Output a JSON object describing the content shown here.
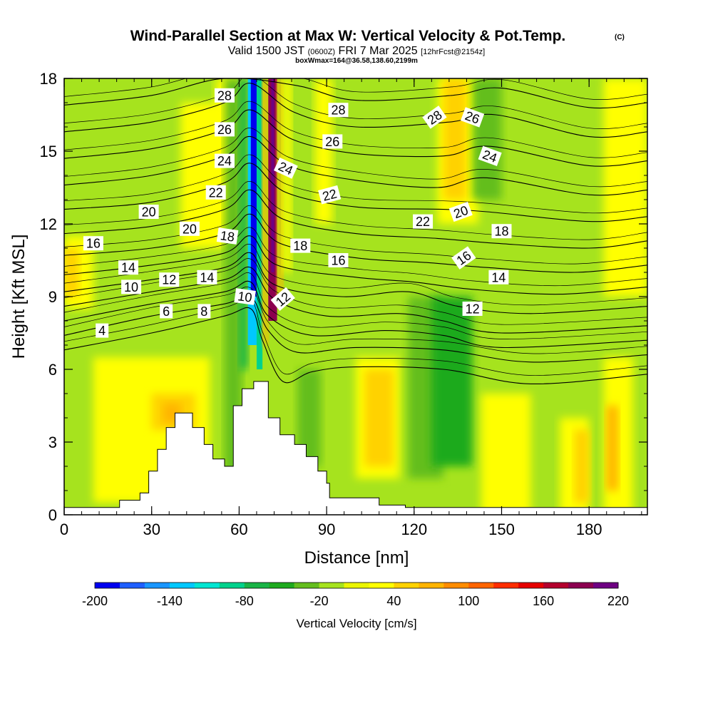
{
  "title": {
    "main": "Wind-Parallel Section at Max W: Vertical Velocity & Pot.Temp.",
    "copyright": "(C)",
    "valid_prefix": "Valid 1500 JST",
    "valid_utc": "(0600Z)",
    "valid_date": "FRI 7 Mar 2025",
    "forecast": "[12hrFcst@2154z]",
    "box": "boxWmax=164@36.58,138.60,2199m"
  },
  "chart_data": {
    "type": "heatmap",
    "xlabel": "Distance [nm]",
    "ylabel": "Height [Kft MSL]",
    "xlim": [
      0,
      200
    ],
    "ylim": [
      0,
      18
    ],
    "xticks": [
      0,
      30,
      60,
      90,
      120,
      150,
      180
    ],
    "yticks": [
      0,
      3,
      6,
      9,
      12,
      15,
      18
    ],
    "colorbar": {
      "label": "Vertical Velocity [cm/s]",
      "min": -200,
      "max": 220,
      "step": 20,
      "tick_labels": [
        -200,
        -140,
        -80,
        -20,
        40,
        100,
        160,
        220
      ],
      "colors": [
        "#0000f0",
        "#1f5fff",
        "#1996ff",
        "#00c8ff",
        "#00e6d2",
        "#00d28c",
        "#19b446",
        "#1eaa1e",
        "#64be1e",
        "#a6e31e",
        "#ebf500",
        "#ffff00",
        "#ffd200",
        "#ffb400",
        "#ff8c00",
        "#ff6400",
        "#ff2d00",
        "#e60000",
        "#b4002d",
        "#8c0050",
        "#6e0082"
      ]
    },
    "velocity_cells": [
      {
        "x0": 0,
        "x1": 200,
        "y0": 0,
        "y1": 18,
        "w": -10
      },
      {
        "x0": 0,
        "x1": 10,
        "y0": 8.5,
        "y1": 11.5,
        "w": 20
      },
      {
        "x0": 0,
        "x1": 5,
        "y0": 9,
        "y1": 11,
        "w": 40
      },
      {
        "x0": 10,
        "x1": 50,
        "y0": 0.5,
        "y1": 6.5,
        "w": 20
      },
      {
        "x0": 30,
        "x1": 45,
        "y0": 3.5,
        "y1": 5,
        "w": 40
      },
      {
        "x0": 34,
        "x1": 40,
        "y0": 3.8,
        "y1": 4.6,
        "w": 60
      },
      {
        "x0": 40,
        "x1": 56,
        "y0": 11,
        "y1": 17,
        "w": 20
      },
      {
        "x0": 52,
        "x1": 60,
        "y0": 12,
        "y1": 18,
        "w": 20
      },
      {
        "x0": 55,
        "x1": 61,
        "y0": 0,
        "y1": 18,
        "w": -40
      },
      {
        "x0": 60,
        "x1": 63,
        "y0": 6,
        "y1": 18,
        "w": -80
      },
      {
        "x0": 63,
        "x1": 66,
        "y0": 7,
        "y1": 18,
        "w": -140
      },
      {
        "x0": 64,
        "x1": 66,
        "y0": 9,
        "y1": 18,
        "w": -200
      },
      {
        "x0": 66,
        "x1": 68,
        "y0": 6,
        "y1": 18,
        "w": -100
      },
      {
        "x0": 68,
        "x1": 70,
        "y0": 7,
        "y1": 18,
        "w": 60
      },
      {
        "x0": 70,
        "x1": 73,
        "y0": 8,
        "y1": 18,
        "w": 180
      },
      {
        "x0": 71,
        "x1": 72,
        "y0": 10,
        "y1": 18,
        "w": 200
      },
      {
        "x0": 73,
        "x1": 75,
        "y0": 9,
        "y1": 18,
        "w": 60
      },
      {
        "x0": 75,
        "x1": 78,
        "y0": 10,
        "y1": 18,
        "w": 20
      },
      {
        "x0": 80,
        "x1": 88,
        "y0": 2,
        "y1": 6,
        "w": -40
      },
      {
        "x0": 86,
        "x1": 92,
        "y0": 12,
        "y1": 18,
        "w": 20
      },
      {
        "x0": 100,
        "x1": 115,
        "y0": 1.5,
        "y1": 6.5,
        "w": 20
      },
      {
        "x0": 103,
        "x1": 113,
        "y0": 2,
        "y1": 6,
        "w": 40
      },
      {
        "x0": 118,
        "x1": 130,
        "y0": 1.5,
        "y1": 9,
        "w": -30
      },
      {
        "x0": 126,
        "x1": 140,
        "y0": 2,
        "y1": 9,
        "w": -50
      },
      {
        "x0": 128,
        "x1": 142,
        "y0": 12,
        "y1": 18,
        "w": 20
      },
      {
        "x0": 130,
        "x1": 138,
        "y0": 13,
        "y1": 18,
        "w": 50
      },
      {
        "x0": 140,
        "x1": 150,
        "y0": 13,
        "y1": 18,
        "w": -40
      },
      {
        "x0": 143,
        "x1": 160,
        "y0": 0,
        "y1": 5,
        "w": 20
      },
      {
        "x0": 170,
        "x1": 180,
        "y0": 0,
        "y1": 4,
        "w": 20
      },
      {
        "x0": 175,
        "x1": 180,
        "y0": 0.5,
        "y1": 3.5,
        "w": 40
      },
      {
        "x0": 185,
        "x1": 195,
        "y0": 0,
        "y1": 6.5,
        "w": 20
      },
      {
        "x0": 186,
        "x1": 190,
        "y0": 1,
        "y1": 4.5,
        "w": 60
      },
      {
        "x0": 185,
        "x1": 200,
        "y0": 9,
        "y1": 18,
        "w": 20
      }
    ],
    "terrain": [
      [
        0,
        0.3
      ],
      [
        19,
        0.3
      ],
      [
        19,
        0.6
      ],
      [
        26,
        0.6
      ],
      [
        26,
        0.9
      ],
      [
        29,
        0.9
      ],
      [
        29,
        1.8
      ],
      [
        32,
        1.8
      ],
      [
        32,
        2.7
      ],
      [
        35,
        2.7
      ],
      [
        35,
        3.6
      ],
      [
        38,
        3.6
      ],
      [
        38,
        4.2
      ],
      [
        44,
        4.2
      ],
      [
        44,
        3.6
      ],
      [
        48,
        3.6
      ],
      [
        48,
        2.9
      ],
      [
        51,
        2.9
      ],
      [
        51,
        2.3
      ],
      [
        55,
        2.3
      ],
      [
        55,
        2.0
      ],
      [
        58,
        2.0
      ],
      [
        58,
        4.5
      ],
      [
        61,
        4.5
      ],
      [
        61,
        5.2
      ],
      [
        65,
        5.2
      ],
      [
        65,
        5.5
      ],
      [
        70,
        5.5
      ],
      [
        70,
        4.0
      ],
      [
        74,
        4.0
      ],
      [
        74,
        3.3
      ],
      [
        79,
        3.3
      ],
      [
        79,
        2.9
      ],
      [
        83,
        2.9
      ],
      [
        83,
        2.4
      ],
      [
        87,
        2.4
      ],
      [
        87,
        1.8
      ],
      [
        90,
        1.8
      ],
      [
        90,
        1.3
      ],
      [
        91,
        1.3
      ],
      [
        91,
        0.7
      ],
      [
        108,
        0.7
      ],
      [
        108,
        0.4
      ],
      [
        117,
        0.4
      ],
      [
        117,
        0.3
      ],
      [
        200,
        0.3
      ]
    ],
    "theta_contours": [
      {
        "level": 4,
        "points": [
          [
            0,
            6.8
          ],
          [
            30,
            7.5
          ],
          [
            55,
            8.2
          ],
          [
            64,
            8.5
          ],
          [
            68,
            7.2
          ],
          [
            75,
            5.5
          ],
          [
            85,
            5.9
          ],
          [
            100,
            6.1
          ],
          [
            130,
            6.0
          ],
          [
            160,
            5.4
          ],
          [
            200,
            5.8
          ]
        ]
      },
      {
        "level": 6,
        "points": [
          [
            0,
            7.4
          ],
          [
            30,
            8.2
          ],
          [
            55,
            8.7
          ],
          [
            64,
            9.0
          ],
          [
            70,
            7.6
          ],
          [
            80,
            6.7
          ],
          [
            100,
            6.9
          ],
          [
            130,
            6.8
          ],
          [
            160,
            6.3
          ],
          [
            200,
            6.6
          ]
        ]
      },
      {
        "level": 8,
        "points": [
          [
            0,
            8.0
          ],
          [
            30,
            8.7
          ],
          [
            55,
            9.2
          ],
          [
            64,
            9.6
          ],
          [
            70,
            8.2
          ],
          [
            85,
            7.4
          ],
          [
            110,
            7.6
          ],
          [
            130,
            7.4
          ],
          [
            150,
            6.9
          ],
          [
            200,
            7.2
          ]
        ]
      },
      {
        "level": 10,
        "points": [
          [
            0,
            8.6
          ],
          [
            30,
            9.2
          ],
          [
            55,
            9.7
          ],
          [
            64,
            10.2
          ],
          [
            72,
            8.9
          ],
          [
            90,
            8.2
          ],
          [
            115,
            8.3
          ],
          [
            130,
            8.0
          ],
          [
            150,
            7.5
          ],
          [
            200,
            7.8
          ]
        ]
      },
      {
        "level": 12,
        "points": [
          [
            0,
            9.2
          ],
          [
            30,
            9.7
          ],
          [
            55,
            10.2
          ],
          [
            64,
            10.8
          ],
          [
            72,
            9.5
          ],
          [
            95,
            9.0
          ],
          [
            118,
            9.2
          ],
          [
            135,
            8.6
          ],
          [
            160,
            8.3
          ],
          [
            200,
            8.6
          ]
        ]
      },
      {
        "level": 14,
        "points": [
          [
            0,
            9.9
          ],
          [
            30,
            10.3
          ],
          [
            55,
            10.8
          ],
          [
            64,
            11.5
          ],
          [
            73,
            10.3
          ],
          [
            100,
            9.8
          ],
          [
            120,
            9.6
          ],
          [
            140,
            9.3
          ],
          [
            170,
            9.1
          ],
          [
            200,
            9.4
          ]
        ]
      },
      {
        "level": 16,
        "points": [
          [
            0,
            10.7
          ],
          [
            30,
            11.0
          ],
          [
            55,
            11.6
          ],
          [
            64,
            12.4
          ],
          [
            74,
            11.2
          ],
          [
            100,
            10.6
          ],
          [
            125,
            10.4
          ],
          [
            145,
            10.2
          ],
          [
            175,
            10.0
          ],
          [
            200,
            10.3
          ]
        ]
      },
      {
        "level": 18,
        "points": [
          [
            0,
            11.6
          ],
          [
            30,
            11.9
          ],
          [
            55,
            12.6
          ],
          [
            64,
            13.4
          ],
          [
            75,
            12.2
          ],
          [
            100,
            11.6
          ],
          [
            128,
            11.4
          ],
          [
            148,
            11.2
          ],
          [
            180,
            11.0
          ],
          [
            200,
            11.3
          ]
        ]
      },
      {
        "level": 20,
        "points": [
          [
            0,
            12.6
          ],
          [
            30,
            12.9
          ],
          [
            55,
            13.7
          ],
          [
            64,
            14.5
          ],
          [
            76,
            13.3
          ],
          [
            100,
            12.7
          ],
          [
            130,
            12.6
          ],
          [
            145,
            12.5
          ],
          [
            180,
            12.1
          ],
          [
            200,
            12.3
          ]
        ]
      },
      {
        "level": 22,
        "points": [
          [
            0,
            13.6
          ],
          [
            30,
            14.0
          ],
          [
            55,
            14.8
          ],
          [
            64,
            15.6
          ],
          [
            77,
            14.4
          ],
          [
            100,
            13.8
          ],
          [
            128,
            13.5
          ],
          [
            145,
            13.9
          ],
          [
            180,
            13.2
          ],
          [
            200,
            13.4
          ]
        ]
      },
      {
        "level": 24,
        "points": [
          [
            0,
            14.7
          ],
          [
            30,
            15.1
          ],
          [
            55,
            15.9
          ],
          [
            64,
            16.7
          ],
          [
            78,
            15.5
          ],
          [
            100,
            14.9
          ],
          [
            130,
            14.8
          ],
          [
            146,
            15.2
          ],
          [
            180,
            14.4
          ],
          [
            200,
            14.6
          ]
        ]
      },
      {
        "level": 26,
        "points": [
          [
            0,
            15.8
          ],
          [
            30,
            16.2
          ],
          [
            55,
            17.0
          ],
          [
            64,
            17.8
          ],
          [
            79,
            16.6
          ],
          [
            100,
            16.0
          ],
          [
            132,
            16.2
          ],
          [
            148,
            16.5
          ],
          [
            180,
            15.6
          ],
          [
            200,
            15.8
          ]
        ]
      },
      {
        "level": 28,
        "points": [
          [
            0,
            16.9
          ],
          [
            30,
            17.3
          ],
          [
            55,
            18.0
          ],
          [
            80,
            17.7
          ],
          [
            100,
            17.1
          ],
          [
            133,
            17.3
          ],
          [
            150,
            17.6
          ],
          [
            180,
            16.8
          ],
          [
            200,
            17.0
          ]
        ]
      }
    ],
    "contour_labels": [
      {
        "text": "4",
        "x": 13,
        "y": 7.6,
        "angle": 0
      },
      {
        "text": "6",
        "x": 35,
        "y": 8.4,
        "angle": 0
      },
      {
        "text": "8",
        "x": 48,
        "y": 8.4,
        "angle": 0
      },
      {
        "text": "10",
        "x": 23,
        "y": 9.4,
        "angle": 0
      },
      {
        "text": "10",
        "x": 62,
        "y": 9.0,
        "angle": 8
      },
      {
        "text": "12",
        "x": 36,
        "y": 9.7,
        "angle": 0
      },
      {
        "text": "12",
        "x": 75,
        "y": 8.9,
        "angle": -40
      },
      {
        "text": "12",
        "x": 140,
        "y": 8.5,
        "angle": 0
      },
      {
        "text": "14",
        "x": 22,
        "y": 10.2,
        "angle": 0
      },
      {
        "text": "14",
        "x": 49,
        "y": 9.8,
        "angle": 0
      },
      {
        "text": "14",
        "x": 149,
        "y": 9.8,
        "angle": 0
      },
      {
        "text": "16",
        "x": 10,
        "y": 11.2,
        "angle": 0
      },
      {
        "text": "16",
        "x": 94,
        "y": 10.5,
        "angle": 0
      },
      {
        "text": "16",
        "x": 137,
        "y": 10.6,
        "angle": -35
      },
      {
        "text": "18",
        "x": 56,
        "y": 11.5,
        "angle": 8
      },
      {
        "text": "18",
        "x": 81,
        "y": 11.1,
        "angle": 0
      },
      {
        "text": "18",
        "x": 150,
        "y": 11.7,
        "angle": 0
      },
      {
        "text": "20",
        "x": 29,
        "y": 12.5,
        "angle": 0
      },
      {
        "text": "20",
        "x": 43,
        "y": 11.8,
        "angle": 0
      },
      {
        "text": "20",
        "x": 136,
        "y": 12.5,
        "angle": -20
      },
      {
        "text": "22",
        "x": 52,
        "y": 13.3,
        "angle": 0
      },
      {
        "text": "22",
        "x": 91,
        "y": 13.2,
        "angle": -15
      },
      {
        "text": "22",
        "x": 123,
        "y": 12.1,
        "angle": 0
      },
      {
        "text": "24",
        "x": 55,
        "y": 14.6,
        "angle": 0
      },
      {
        "text": "24",
        "x": 76,
        "y": 14.3,
        "angle": 25
      },
      {
        "text": "24",
        "x": 146,
        "y": 14.8,
        "angle": 20
      },
      {
        "text": "26",
        "x": 55,
        "y": 15.9,
        "angle": 0
      },
      {
        "text": "26",
        "x": 92,
        "y": 15.4,
        "angle": 0
      },
      {
        "text": "26",
        "x": 140,
        "y": 16.4,
        "angle": 20
      },
      {
        "text": "28",
        "x": 55,
        "y": 17.3,
        "angle": 0
      },
      {
        "text": "28",
        "x": 94,
        "y": 16.7,
        "angle": 0
      },
      {
        "text": "28",
        "x": 127,
        "y": 16.4,
        "angle": -35
      }
    ]
  }
}
